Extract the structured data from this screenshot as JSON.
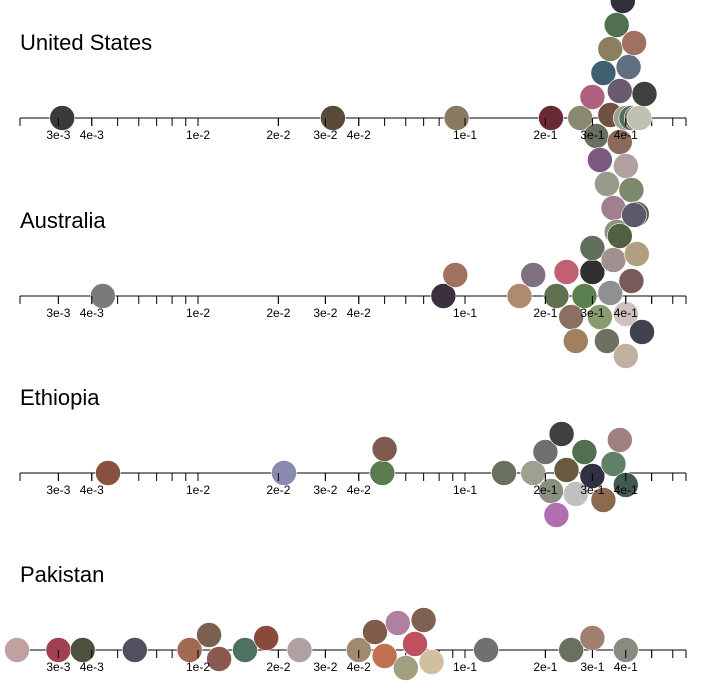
{
  "chart_data": {
    "type": "scatter",
    "description_of_marks": "beeswarm of circular photo thumbnails on a log axis",
    "x_scale": "log",
    "xlim": [
      0.0025,
      0.6
    ],
    "tick_labels": [
      {
        "value": 0.003,
        "label": "3e-3"
      },
      {
        "value": 0.004,
        "label": "4e-3"
      },
      {
        "value": 0.01,
        "label": "1e-2"
      },
      {
        "value": 0.02,
        "label": "2e-2"
      },
      {
        "value": 0.03,
        "label": "3e-2"
      },
      {
        "value": 0.04,
        "label": "4e-2"
      },
      {
        "value": 0.1,
        "label": "1e-1"
      },
      {
        "value": 0.2,
        "label": "2e-1"
      },
      {
        "value": 0.3,
        "label": "3e-1"
      },
      {
        "value": 0.4,
        "label": "4e-1"
      }
    ],
    "grid": false,
    "legend": "none",
    "panels": [
      {
        "title": "United States",
        "points": [
          0.0031,
          0.032,
          0.093,
          0.21,
          0.27,
          0.3,
          0.31,
          0.32,
          0.33,
          0.34,
          0.35,
          0.36,
          0.37,
          0.38,
          0.39,
          0.4,
          0.41,
          0.42,
          0.43,
          0.44,
          0.45,
          0.47,
          0.35,
          0.38,
          0.4,
          0.42,
          0.44,
          0.37
        ],
        "colors": [
          "#3a3a3a",
          "#5a4a3a",
          "#8a7a60",
          "#6a2a35",
          "#8a8a70",
          "#b06080",
          "#6a7060",
          "#7a5a80",
          "#406070",
          "#9a9a8a",
          "#705040",
          "#a08090",
          "#507050",
          "#8a6a5a",
          "#30303a",
          "#b0a0a0",
          "#607080",
          "#7a8a6a",
          "#a07060",
          "#506050",
          "#c0c0b0",
          "#404040",
          "#8a8060",
          "#6a5a70",
          "#a0a090",
          "#507060",
          "#7a6a5a",
          "#909080"
        ]
      },
      {
        "title": "Australia",
        "points": [
          0.0044,
          0.083,
          0.092,
          0.16,
          0.18,
          0.22,
          0.24,
          0.26,
          0.28,
          0.3,
          0.32,
          0.34,
          0.36,
          0.38,
          0.4,
          0.42,
          0.44,
          0.46,
          0.25,
          0.3,
          0.35,
          0.4,
          0.43
        ],
        "colors": [
          "#7a7a7a",
          "#3a3040",
          "#a07060",
          "#b08a70",
          "#807080",
          "#607050",
          "#c06070",
          "#a08060",
          "#5a8050",
          "#303030",
          "#8a9a70",
          "#707060",
          "#a09090",
          "#506040",
          "#d0c0c0",
          "#7a5a5a",
          "#b0a080",
          "#404050",
          "#8a7060",
          "#60705a",
          "#909090",
          "#c0b0a0",
          "#5a5a6a"
        ]
      },
      {
        "title": "Ethiopia",
        "points": [
          0.0046,
          0.021,
          0.049,
          0.05,
          0.14,
          0.18,
          0.2,
          0.21,
          0.22,
          0.23,
          0.24,
          0.26,
          0.28,
          0.3,
          0.33,
          0.36,
          0.38,
          0.4
        ],
        "colors": [
          "#8a5040",
          "#8a8ab0",
          "#5a7a50",
          "#805a50",
          "#6a7060",
          "#a0a090",
          "#707070",
          "#8a9080",
          "#b070b0",
          "#404040",
          "#6a5a40",
          "#c0c0c0",
          "#507050",
          "#303040",
          "#8a6a50",
          "#60806a",
          "#a08080",
          "#405a50"
        ]
      },
      {
        "title": "Pakistan",
        "points": [
          0.0021,
          0.003,
          0.0037,
          0.0058,
          0.0093,
          0.011,
          0.012,
          0.015,
          0.018,
          0.024,
          0.04,
          0.046,
          0.05,
          0.056,
          0.06,
          0.065,
          0.07,
          0.075,
          0.12,
          0.25,
          0.3,
          0.4
        ],
        "colors": [
          "#c0a0a0",
          "#a04050",
          "#505040",
          "#505060",
          "#a06a50",
          "#7a6050",
          "#8a5a50",
          "#507060",
          "#8a4a3a",
          "#b0a0a0",
          "#a08a70",
          "#805a4a",
          "#c07050",
          "#b080a0",
          "#a0a080",
          "#c05060",
          "#806050",
          "#d0c0a0",
          "#707070",
          "#6a7060",
          "#a08070",
          "#8a8a80"
        ]
      }
    ]
  }
}
